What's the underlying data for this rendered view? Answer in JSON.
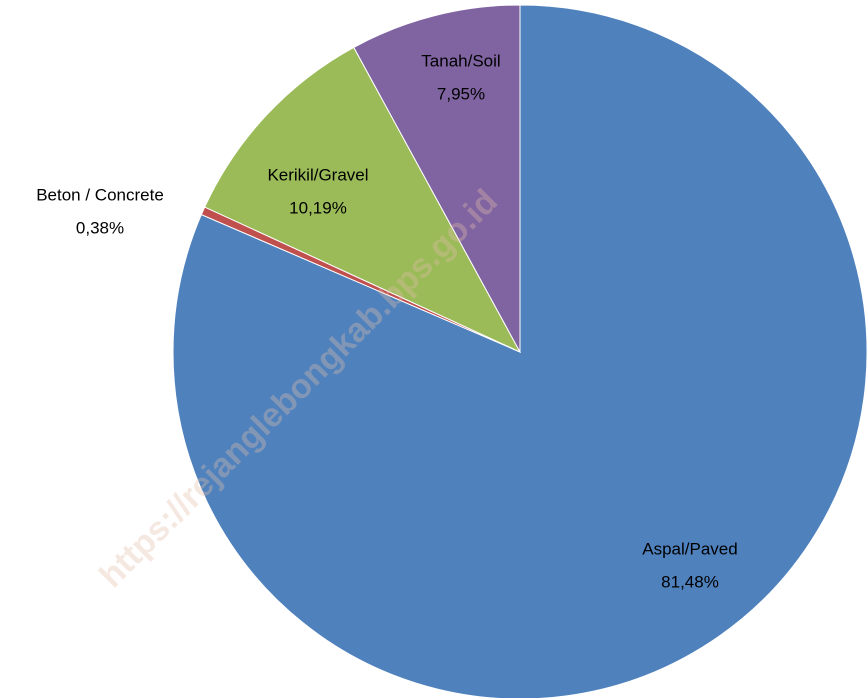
{
  "chart_data": {
    "type": "pie",
    "categories": [
      "Aspal/Paved",
      "Beton /  Concrete",
      "Kerikil/Gravel",
      "Tanah/Soil"
    ],
    "values": [
      81.48,
      0.38,
      10.19,
      7.95
    ],
    "value_labels": [
      "81,48%",
      "0,38%",
      "10,19%",
      "7,95%"
    ],
    "colors": [
      "#4f81bd",
      "#c0504d",
      "#9bbb59",
      "#8064a2"
    ],
    "watermark": "https://rejanglebongkab.bps.go.id"
  }
}
